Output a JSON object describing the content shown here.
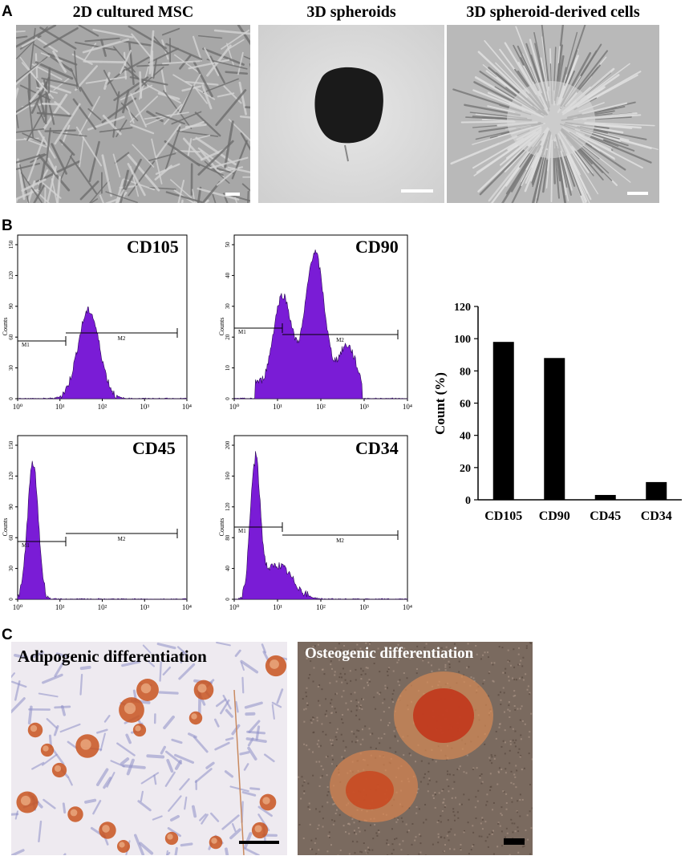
{
  "panels": {
    "a": {
      "letter": "A",
      "images": [
        {
          "title": "2D cultured MSC"
        },
        {
          "title": "3D spheroids"
        },
        {
          "title": "3D spheroid-derived cells"
        }
      ]
    },
    "b": {
      "letter": "B",
      "histograms": [
        {
          "marker": "CD105",
          "y_axis": "Counts",
          "y_ticks": [
            "0",
            "30",
            "60",
            "90",
            "120",
            "150"
          ],
          "x_ticks": [
            "10⁰",
            "10¹",
            "10²",
            "10³",
            "10⁴"
          ],
          "gates": [
            "M1",
            "M2"
          ]
        },
        {
          "marker": "CD90",
          "y_axis": "Counts",
          "y_ticks": [
            "0",
            "10",
            "20",
            "30",
            "40",
            "50"
          ],
          "x_ticks": [
            "10⁰",
            "10¹",
            "10²",
            "10³",
            "10⁴"
          ],
          "gates": [
            "M1",
            "M2"
          ]
        },
        {
          "marker": "CD45",
          "y_axis": "Counts",
          "y_ticks": [
            "0",
            "30",
            "60",
            "90",
            "120",
            "150"
          ],
          "x_ticks": [
            "10⁰",
            "10¹",
            "10²",
            "10³",
            "10⁴"
          ],
          "gates": [
            "M1",
            "M2"
          ]
        },
        {
          "marker": "CD34",
          "y_axis": "Counts",
          "y_ticks": [
            "0",
            "40",
            "80",
            "120",
            "160",
            "200"
          ],
          "x_ticks": [
            "10⁰",
            "10¹",
            "10²",
            "10³",
            "10⁴"
          ],
          "gates": [
            "M1",
            "M2"
          ]
        }
      ],
      "hist_color": "#7a1cd6"
    },
    "c": {
      "letter": "C",
      "images": [
        {
          "title": "Adipogenic differentiation"
        },
        {
          "title": "Osteogenic differentiation"
        }
      ]
    }
  },
  "chart_data": {
    "type": "bar",
    "categories": [
      "CD105",
      "CD90",
      "CD45",
      "CD34"
    ],
    "values": [
      98,
      88,
      3,
      11
    ],
    "ylabel": "Count (%)",
    "ylim": [
      0,
      120
    ],
    "yticks": [
      0,
      20,
      40,
      60,
      80,
      100,
      120
    ],
    "bar_color": "#000000"
  }
}
